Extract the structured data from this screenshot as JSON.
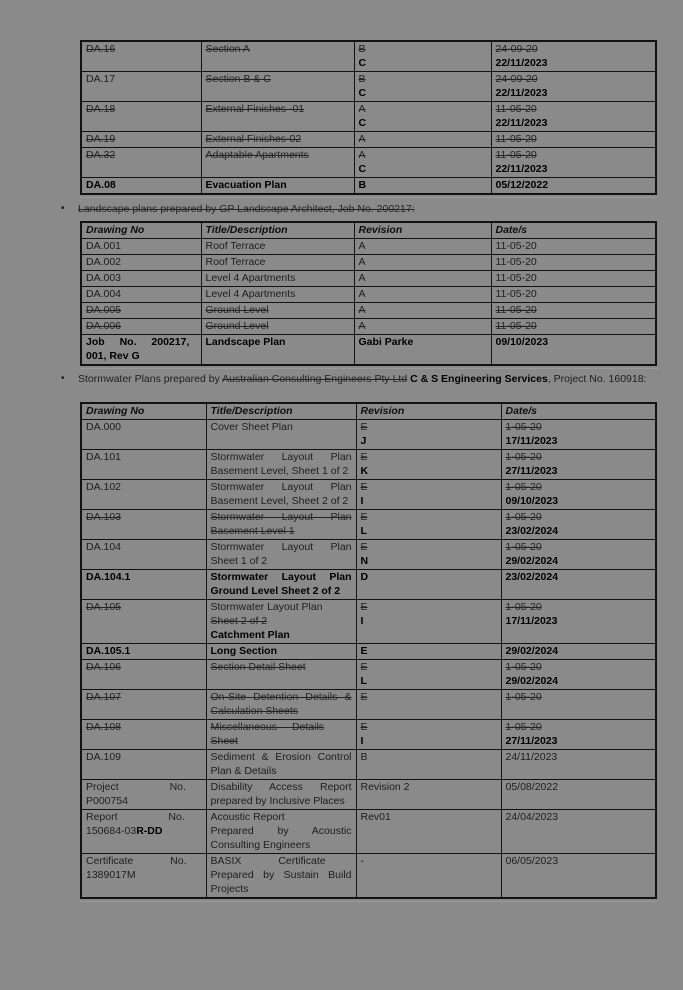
{
  "colors": {
    "page_bg": "#8a8a8a",
    "ink": "#1d1d1d",
    "bold_ink": "#000000",
    "border": "#131313"
  },
  "bullet_glyph": "•",
  "table1": {
    "rows": [
      {
        "num": [
          {
            "t": "DA.16",
            "st": "s"
          }
        ],
        "title": [
          {
            "t": "Section A",
            "st": "s"
          }
        ],
        "rev": [
          {
            "t": "B",
            "st": "s",
            "br": 1
          },
          {
            "t": "C",
            "st": "b"
          }
        ],
        "date": [
          {
            "t": "24-09-20",
            "st": "s",
            "br": 1
          },
          {
            "t": "22/11/2023",
            "st": "b"
          }
        ]
      },
      {
        "num": [
          {
            "t": "DA.17"
          }
        ],
        "title": [
          {
            "t": "Section B & C",
            "st": "s"
          }
        ],
        "rev": [
          {
            "t": "B",
            "st": "s",
            "br": 1
          },
          {
            "t": "C",
            "st": "b"
          }
        ],
        "date": [
          {
            "t": "24-09-20",
            "st": "s",
            "br": 1
          },
          {
            "t": "22/11/2023",
            "st": "b"
          }
        ]
      },
      {
        "num": [
          {
            "t": "DA.18",
            "st": "s"
          }
        ],
        "title": [
          {
            "t": "External Finishes -01",
            "st": "s"
          }
        ],
        "rev": [
          {
            "t": "A",
            "st": "s",
            "br": 1
          },
          {
            "t": "C",
            "st": "b"
          }
        ],
        "date": [
          {
            "t": "11-05-20",
            "st": "s",
            "br": 1
          },
          {
            "t": "22/11/2023",
            "st": "b"
          }
        ]
      },
      {
        "num": [
          {
            "t": "DA.19",
            "st": "s"
          }
        ],
        "title": [
          {
            "t": "External Finishes-02",
            "st": "s"
          }
        ],
        "rev": [
          {
            "t": "A",
            "st": "s"
          }
        ],
        "date": [
          {
            "t": "11-05-20",
            "st": "s"
          }
        ]
      },
      {
        "num": [
          {
            "t": "DA.32",
            "st": "s"
          }
        ],
        "title": [
          {
            "t": "Adaptable Apartments",
            "st": "s"
          }
        ],
        "rev": [
          {
            "t": "A",
            "st": "s",
            "br": 1
          },
          {
            "t": "C",
            "st": "b"
          }
        ],
        "date": [
          {
            "t": "11-05-20",
            "st": "s",
            "br": 1
          },
          {
            "t": "22/11/2023",
            "st": "b"
          }
        ]
      },
      {
        "num": [
          {
            "t": "DA.08",
            "st": "b"
          }
        ],
        "title": [
          {
            "t": "Evacuation Plan",
            "st": "b"
          }
        ],
        "rev": [
          {
            "t": "B",
            "st": "b"
          }
        ],
        "date": [
          {
            "t": "05/12/2022",
            "st": "b"
          }
        ]
      }
    ]
  },
  "landscape": {
    "bullet": [
      {
        "t": "Landscape plans prepared by GP Landscape Architect, Job No. 200217:",
        "st": "s"
      }
    ],
    "headers": [
      "Drawing No",
      "Title/Description",
      "Revision",
      "Date/s"
    ],
    "rows": [
      {
        "num": [
          {
            "t": "DA.001"
          }
        ],
        "title": [
          {
            "t": "Roof Terrace"
          }
        ],
        "rev": [
          {
            "t": "A"
          }
        ],
        "date": [
          {
            "t": "11-05-20"
          }
        ]
      },
      {
        "num": [
          {
            "t": "DA.002"
          }
        ],
        "title": [
          {
            "t": "Roof Terrace"
          }
        ],
        "rev": [
          {
            "t": "A"
          }
        ],
        "date": [
          {
            "t": "11-05-20"
          }
        ]
      },
      {
        "num": [
          {
            "t": "DA.003"
          }
        ],
        "title": [
          {
            "t": "Level 4 Apartments"
          }
        ],
        "rev": [
          {
            "t": "A"
          }
        ],
        "date": [
          {
            "t": "11-05-20"
          }
        ]
      },
      {
        "num": [
          {
            "t": "DA.004"
          }
        ],
        "title": [
          {
            "t": "Level 4 Apartments"
          }
        ],
        "rev": [
          {
            "t": "A"
          }
        ],
        "date": [
          {
            "t": "11-05-20"
          }
        ]
      },
      {
        "num": [
          {
            "t": "DA.005",
            "st": "s"
          }
        ],
        "title": [
          {
            "t": "Ground Level",
            "st": "s"
          }
        ],
        "rev": [
          {
            "t": "A",
            "st": "s"
          }
        ],
        "date": [
          {
            "t": "11-05-20",
            "st": "s"
          }
        ]
      },
      {
        "num": [
          {
            "t": "DA.006",
            "st": "s"
          }
        ],
        "title": [
          {
            "t": "Ground Level",
            "st": "s"
          }
        ],
        "rev": [
          {
            "t": "A",
            "st": "s"
          }
        ],
        "date": [
          {
            "t": "11-05-20",
            "st": "s"
          }
        ]
      },
      {
        "num": [
          {
            "t": "Job No. 200217,",
            "st": "b w1",
            "br": 1
          },
          {
            "t": "001, Rev G",
            "st": "b"
          }
        ],
        "title": [
          {
            "t": "Landscape Plan",
            "st": "b"
          }
        ],
        "rev": [
          {
            "t": "Gabi Parke",
            "st": "b"
          }
        ],
        "date": [
          {
            "t": "09/10/2023",
            "st": "b"
          }
        ]
      }
    ]
  },
  "stormwater": {
    "bullet": [
      {
        "t": "Stormwater Plans prepared by "
      },
      {
        "t": "Australian Consulting Engineers Pty Ltd",
        "st": "s"
      },
      {
        "t": " "
      },
      {
        "t": "C & S Engineering Services",
        "st": "b"
      },
      {
        "t": ", Project No. 160918:"
      }
    ],
    "headers": [
      "Drawing No",
      "Title/Description",
      "Revision",
      "Date/s"
    ],
    "rows": [
      {
        "num": [
          {
            "t": "DA.000"
          }
        ],
        "title": [
          {
            "t": "Cover Sheet Plan"
          }
        ],
        "rev": [
          {
            "t": "E",
            "st": "s",
            "br": 1
          },
          {
            "t": "J",
            "st": "b"
          }
        ],
        "date": [
          {
            "t": "1-05-20",
            "st": "s",
            "br": 1
          },
          {
            "t": "17/11/2023",
            "st": "b"
          }
        ]
      },
      {
        "num": [
          {
            "t": "DA.101"
          }
        ],
        "title": [
          {
            "t": "Stormwater Layout Plan Basement Level, Sheet 1 of 2"
          }
        ],
        "rev": [
          {
            "t": "E",
            "st": "s",
            "br": 1
          },
          {
            "t": "K",
            "st": "b"
          }
        ],
        "date": [
          {
            "t": "1-05-20",
            "st": "s",
            "br": 1
          },
          {
            "t": "27/11/2023",
            "st": "b"
          }
        ]
      },
      {
        "num": [
          {
            "t": "DA.102"
          }
        ],
        "title": [
          {
            "t": "Stormwater Layout Plan Basement Level, Sheet 2 of 2"
          }
        ],
        "rev": [
          {
            "t": "E",
            "st": "s",
            "br": 1
          },
          {
            "t": "I",
            "st": "b"
          }
        ],
        "date": [
          {
            "t": "1-05-20",
            "st": "s",
            "br": 1
          },
          {
            "t": "09/10/2023",
            "st": "b"
          }
        ]
      },
      {
        "num": [
          {
            "t": "DA.103",
            "st": "s"
          }
        ],
        "title": [
          {
            "t": "Stormwater Layout Plan Basement Level 1",
            "st": "s"
          }
        ],
        "rev": [
          {
            "t": "E",
            "st": "s",
            "br": 1
          },
          {
            "t": "L",
            "st": "b"
          }
        ],
        "date": [
          {
            "t": "1-05-20",
            "st": "s",
            "br": 1
          },
          {
            "t": "23/02/2024",
            "st": "b"
          }
        ]
      },
      {
        "num": [
          {
            "t": "DA.104"
          }
        ],
        "title": [
          {
            "t": "Stormwater Layout Plan Sheet 1 of 2"
          }
        ],
        "rev": [
          {
            "t": "E",
            "st": "s",
            "br": 1
          },
          {
            "t": "N",
            "st": "b"
          }
        ],
        "date": [
          {
            "t": "1-05-20",
            "st": "s",
            "br": 1
          },
          {
            "t": "29/02/2024",
            "st": "b"
          }
        ]
      },
      {
        "num": [
          {
            "t": "DA.104.1",
            "st": "b"
          }
        ],
        "title": [
          {
            "t": "Stormwater Layout Plan Ground Level Sheet 2 of 2",
            "st": "b"
          }
        ],
        "rev": [
          {
            "t": "D",
            "st": "b"
          }
        ],
        "date": [
          {
            "t": "23/02/2024",
            "st": "b"
          }
        ]
      },
      {
        "num": [
          {
            "t": "DA.105",
            "st": "s"
          }
        ],
        "title": [
          {
            "t": "Stormwater Layout Plan",
            "br": 1
          },
          {
            "t": "Sheet 2 of 2",
            "st": "s",
            "br": 1
          },
          {
            "t": "Catchment Plan",
            "st": "b"
          }
        ],
        "rev": [
          {
            "t": "E",
            "st": "s",
            "br": 1
          },
          {
            "t": "I",
            "st": "b"
          }
        ],
        "date": [
          {
            "t": "1-05-20",
            "st": "s",
            "br": 1
          },
          {
            "t": "17/11/2023",
            "st": "b"
          }
        ]
      },
      {
        "num": [
          {
            "t": "DA.105.1",
            "st": "b"
          }
        ],
        "title": [
          {
            "t": "Long Section",
            "st": "b"
          }
        ],
        "rev": [
          {
            "t": "E",
            "st": "b"
          }
        ],
        "date": [
          {
            "t": "29/02/2024",
            "st": "b"
          }
        ]
      },
      {
        "num": [
          {
            "t": "DA.106",
            "st": "s"
          }
        ],
        "title": [
          {
            "t": "Section Detail Sheet",
            "st": "s"
          }
        ],
        "rev": [
          {
            "t": "E",
            "st": "s",
            "br": 1
          },
          {
            "t": "L",
            "st": "b"
          }
        ],
        "date": [
          {
            "t": "1-05-20",
            "st": "s",
            "br": 1
          },
          {
            "t": "29/02/2024",
            "st": "b"
          }
        ]
      },
      {
        "num": [
          {
            "t": "DA.107",
            "st": "s"
          }
        ],
        "title": [
          {
            "t": "On-Site Detention Details & Calculation Sheets",
            "st": "s"
          }
        ],
        "rev": [
          {
            "t": "E",
            "st": "s"
          }
        ],
        "date": [
          {
            "t": "1-05-20",
            "st": "s"
          }
        ]
      },
      {
        "num": [
          {
            "t": "DA.108",
            "st": "s"
          }
        ],
        "title": [
          {
            "t": "Miscellaneous Details",
            "st": "s w1",
            "br": 1
          },
          {
            "t": "Sheet",
            "st": "s"
          }
        ],
        "rev": [
          {
            "t": "E",
            "st": "s",
            "br": 1
          },
          {
            "t": "I",
            "st": "b"
          }
        ],
        "date": [
          {
            "t": "1-05-20",
            "st": "s",
            "br": 1
          },
          {
            "t": "27/11/2023",
            "st": "b"
          }
        ]
      },
      {
        "num": [
          {
            "t": "DA.109"
          }
        ],
        "title": [
          {
            "t": "Sediment & Erosion Control Plan & Details"
          }
        ],
        "rev": [
          {
            "t": "B"
          }
        ],
        "date": [
          {
            "t": "24/11/2023"
          }
        ]
      },
      {
        "num": [
          {
            "t": "Project No.",
            "st": "w3",
            "br": 1
          },
          {
            "t": "P000754"
          }
        ],
        "title": [
          {
            "t": "Disability Access Report prepared by Inclusive Places"
          }
        ],
        "rev": [
          {
            "t": "Revision 2"
          }
        ],
        "date": [
          {
            "t": "05/08/2022"
          }
        ]
      },
      {
        "num": [
          {
            "t": "Report No.",
            "st": "w3",
            "br": 1
          },
          {
            "t": "150684-03"
          },
          {
            "t": "R-DD",
            "st": "b"
          }
        ],
        "title": [
          {
            "t": "Acoustic Report",
            "br": 1
          },
          {
            "t": "Prepared by Acoustic Consulting Engineers"
          }
        ],
        "rev": [
          {
            "t": "Rev01"
          }
        ],
        "date": [
          {
            "t": "24/04/2023"
          }
        ]
      },
      {
        "num": [
          {
            "t": "Certificate No.",
            "st": "w2",
            "br": 1
          },
          {
            "t": "1389017M"
          }
        ],
        "title": [
          {
            "t": "BASIX Certificate",
            "st": "w2",
            "br": 1
          },
          {
            "t": "Prepared by Sustain Build Projects"
          }
        ],
        "rev": [
          {
            "t": "-"
          }
        ],
        "date": [
          {
            "t": "06/05/2023"
          }
        ]
      }
    ]
  }
}
